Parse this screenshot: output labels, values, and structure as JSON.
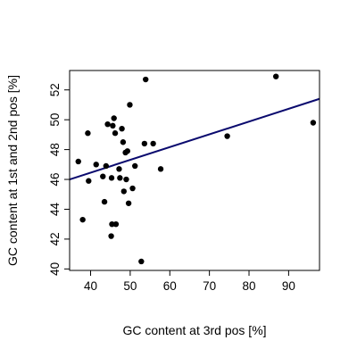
{
  "chart_data": {
    "type": "scatter",
    "title": "",
    "xlabel": "GC content at 3rd pos [%]",
    "ylabel": "GC content at 1st and 2nd pos [%]",
    "xlim": [
      34.7,
      97.8
    ],
    "ylim": [
      39.9,
      53.3
    ],
    "x_ticks": [
      40,
      50,
      60,
      70,
      80,
      90
    ],
    "y_ticks": [
      40,
      42,
      44,
      46,
      48,
      50,
      52
    ],
    "grid": false,
    "legend": "none",
    "point_color": "#000000",
    "fit_color": "#0a0a6e",
    "points": [
      {
        "x": 36.9,
        "y": 47.2
      },
      {
        "x": 38.0,
        "y": 43.3
      },
      {
        "x": 39.3,
        "y": 49.1
      },
      {
        "x": 39.5,
        "y": 45.9
      },
      {
        "x": 41.4,
        "y": 47.0
      },
      {
        "x": 43.1,
        "y": 46.2
      },
      {
        "x": 43.5,
        "y": 44.5
      },
      {
        "x": 43.9,
        "y": 46.9
      },
      {
        "x": 44.3,
        "y": 49.7
      },
      {
        "x": 45.2,
        "y": 42.2
      },
      {
        "x": 45.3,
        "y": 46.1
      },
      {
        "x": 45.4,
        "y": 43.0
      },
      {
        "x": 45.6,
        "y": 49.6
      },
      {
        "x": 45.9,
        "y": 50.1
      },
      {
        "x": 46.2,
        "y": 49.1
      },
      {
        "x": 46.4,
        "y": 43.0
      },
      {
        "x": 47.2,
        "y": 46.7
      },
      {
        "x": 47.4,
        "y": 46.1
      },
      {
        "x": 47.9,
        "y": 49.4
      },
      {
        "x": 48.2,
        "y": 48.5
      },
      {
        "x": 48.4,
        "y": 45.2
      },
      {
        "x": 48.8,
        "y": 47.8
      },
      {
        "x": 49.0,
        "y": 46.0
      },
      {
        "x": 49.3,
        "y": 47.9
      },
      {
        "x": 49.6,
        "y": 44.4
      },
      {
        "x": 49.9,
        "y": 51.0
      },
      {
        "x": 50.6,
        "y": 45.4
      },
      {
        "x": 51.2,
        "y": 46.9
      },
      {
        "x": 52.8,
        "y": 40.5
      },
      {
        "x": 53.6,
        "y": 48.4
      },
      {
        "x": 53.9,
        "y": 52.7
      },
      {
        "x": 55.8,
        "y": 48.4
      },
      {
        "x": 57.7,
        "y": 46.7
      },
      {
        "x": 74.5,
        "y": 48.9
      },
      {
        "x": 86.8,
        "y": 52.9
      },
      {
        "x": 96.2,
        "y": 49.8
      }
    ],
    "fit_line": {
      "x": [
        34.7,
        97.8
      ],
      "y": [
        46.0,
        51.4
      ]
    }
  }
}
